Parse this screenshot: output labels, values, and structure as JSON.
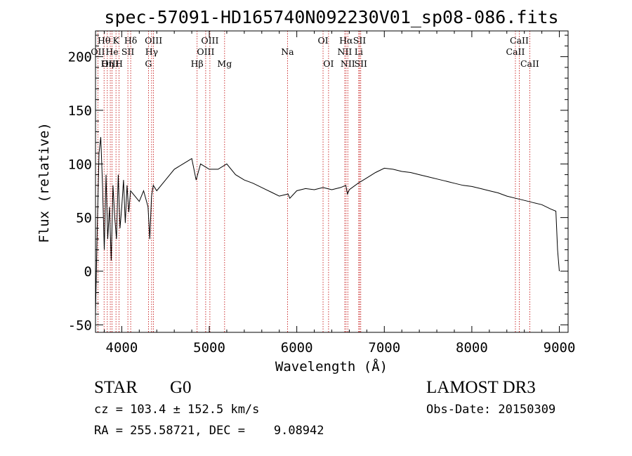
{
  "chart_data": {
    "type": "line",
    "title": "spec-57091-HD165740N092230V01_sp08-086.fits",
    "xlabel": "Wavelength (Å)",
    "ylabel": "Flux (relative)",
    "xlim": [
      3700,
      9100
    ],
    "ylim": [
      -57,
      224
    ],
    "xticks": [
      4000,
      5000,
      6000,
      7000,
      8000,
      9000
    ],
    "yticks": [
      -50,
      0,
      50,
      100,
      150,
      200
    ],
    "grid": false,
    "series": [
      {
        "name": "flux",
        "x": [
          3700,
          3720,
          3740,
          3760,
          3780,
          3800,
          3820,
          3840,
          3860,
          3880,
          3900,
          3920,
          3940,
          3960,
          3980,
          4000,
          4020,
          4040,
          4060,
          4080,
          4100,
          4150,
          4200,
          4250,
          4300,
          4320,
          4340,
          4360,
          4400,
          4500,
          4600,
          4700,
          4800,
          4850,
          4900,
          5000,
          5100,
          5200,
          5300,
          5400,
          5500,
          5600,
          5700,
          5800,
          5900,
          5920,
          6000,
          6100,
          6200,
          6300,
          6400,
          6500,
          6560,
          6580,
          6600,
          6700,
          6800,
          6900,
          7000,
          7100,
          7200,
          7300,
          7400,
          7500,
          7600,
          7700,
          7800,
          7900,
          8000,
          8100,
          8200,
          8300,
          8400,
          8500,
          8600,
          8700,
          8800,
          8900,
          8960,
          8980,
          9000
        ],
        "y": [
          -40,
          40,
          110,
          125,
          80,
          20,
          90,
          30,
          60,
          10,
          80,
          50,
          30,
          90,
          40,
          60,
          85,
          45,
          80,
          55,
          75,
          70,
          65,
          75,
          60,
          30,
          70,
          80,
          75,
          85,
          95,
          100,
          105,
          85,
          100,
          95,
          95,
          100,
          90,
          85,
          82,
          78,
          74,
          70,
          72,
          68,
          75,
          77,
          76,
          78,
          76,
          78,
          80,
          72,
          76,
          82,
          87,
          92,
          96,
          95,
          93,
          92,
          90,
          88,
          86,
          84,
          82,
          80,
          79,
          77,
          75,
          73,
          70,
          68,
          66,
          64,
          62,
          58,
          56,
          20,
          0
        ]
      }
    ],
    "spectral_lines": [
      {
        "label": "Hθ",
        "x": 3798,
        "row": 1
      },
      {
        "label": "OII",
        "x": 3727,
        "row": 2
      },
      {
        "label": "OIII",
        "x": 3869,
        "row": 3
      },
      {
        "label": "He",
        "x": 3889,
        "row": 2
      },
      {
        "label": "Hη",
        "x": 3835,
        "row": 3
      },
      {
        "label": "K",
        "x": 3934,
        "row": 1
      },
      {
        "label": "H",
        "x": 3968,
        "row": 3
      },
      {
        "label": "SII",
        "x": 4070,
        "row": 2
      },
      {
        "label": "Hδ",
        "x": 4102,
        "row": 1
      },
      {
        "label": "OIII",
        "x": 4363,
        "row": 1
      },
      {
        "label": "Hγ",
        "x": 4341,
        "row": 2
      },
      {
        "label": "G",
        "x": 4305,
        "row": 3
      },
      {
        "label": "Hβ",
        "x": 4861,
        "row": 3
      },
      {
        "label": "OIII",
        "x": 4959,
        "row": 2
      },
      {
        "label": "OIII",
        "x": 5007,
        "row": 1
      },
      {
        "label": "Mg",
        "x": 5175,
        "row": 3
      },
      {
        "label": "Na",
        "x": 5894,
        "row": 2
      },
      {
        "label": "OI",
        "x": 6300,
        "row": 1
      },
      {
        "label": "OI",
        "x": 6363,
        "row": 3
      },
      {
        "label": "NII",
        "x": 6548,
        "row": 2
      },
      {
        "label": "Hα",
        "x": 6563,
        "row": 1
      },
      {
        "label": "NII",
        "x": 6583,
        "row": 3
      },
      {
        "label": "Li",
        "x": 6708,
        "row": 2
      },
      {
        "label": "SII",
        "x": 6717,
        "row": 1
      },
      {
        "label": "SII",
        "x": 6731,
        "row": 3
      },
      {
        "label": "CaII",
        "x": 8498,
        "row": 2
      },
      {
        "label": "CaII",
        "x": 8542,
        "row": 1
      },
      {
        "label": "CaII",
        "x": 8662,
        "row": 3
      }
    ]
  },
  "info": {
    "object_class": "STAR",
    "subclass": "G0",
    "survey": "LAMOST DR3",
    "cz": "cz = 103.4 ± 152.5 km/s",
    "obs_date": "Obs-Date: 20150309",
    "radec": "RA = 255.58721, DEC =    9.08942"
  }
}
